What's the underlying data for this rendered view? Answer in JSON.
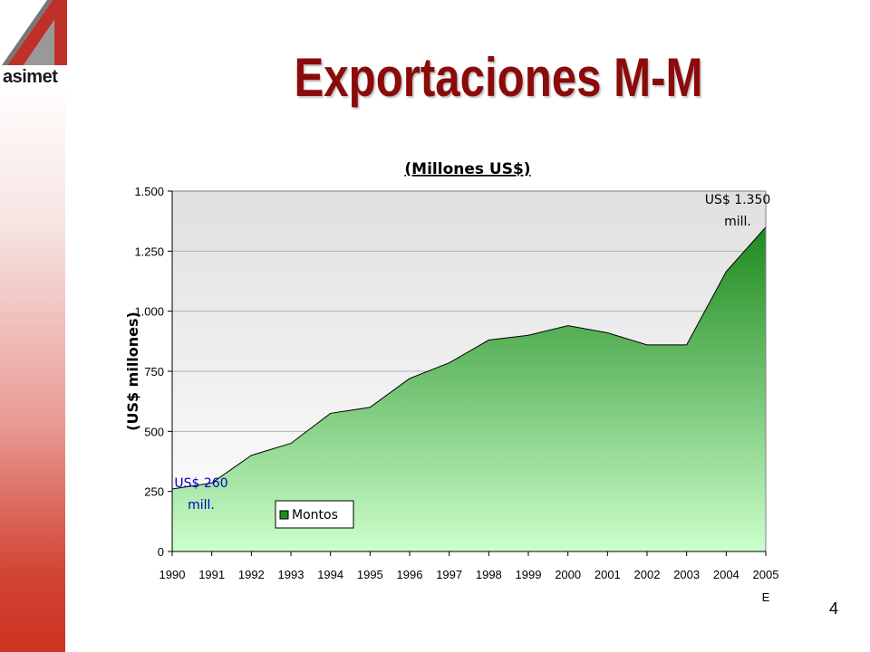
{
  "slide": {
    "title": "Exportaciones M-M",
    "page_number": "4",
    "logo_text": "asimet"
  },
  "colors": {
    "title": "#8b0a0a",
    "area_top": "#1e8a1e",
    "area_bottom": "#ccffcc",
    "plot_top": "#e0e0e0",
    "plot_bottom": "#ffffff",
    "start_annotation": "#0000cc",
    "end_annotation": "#000000"
  },
  "chart_data": {
    "type": "area",
    "title": "(Millones US$)",
    "ylabel": "(US$ millones)",
    "x": [
      "1990",
      "1991",
      "1992",
      "1993",
      "1994",
      "1995",
      "1996",
      "1997",
      "1998",
      "1999",
      "2000",
      "2001",
      "2002",
      "2003",
      "2004",
      "2005"
    ],
    "x_note": "E",
    "series": [
      {
        "name": "Montos",
        "values": [
          260,
          285,
          400,
          450,
          575,
          600,
          720,
          785,
          880,
          900,
          940,
          910,
          860,
          860,
          1165,
          1350
        ]
      }
    ],
    "ylim": [
      0,
      1500
    ],
    "yticks": [
      0,
      250,
      500,
      750,
      1000,
      1250,
      1500
    ],
    "ytick_labels": [
      "0",
      "250",
      "500",
      "750",
      "1.000",
      "1.250",
      "1.500"
    ],
    "grid": true,
    "legend": "bottom-left",
    "annotations": [
      {
        "lines": [
          "US$ 260",
          "mill."
        ],
        "x": "1990",
        "color": "#0000cc"
      },
      {
        "lines": [
          "US$ 1.350",
          "mill."
        ],
        "x": "2005",
        "color": "#000000"
      }
    ]
  }
}
